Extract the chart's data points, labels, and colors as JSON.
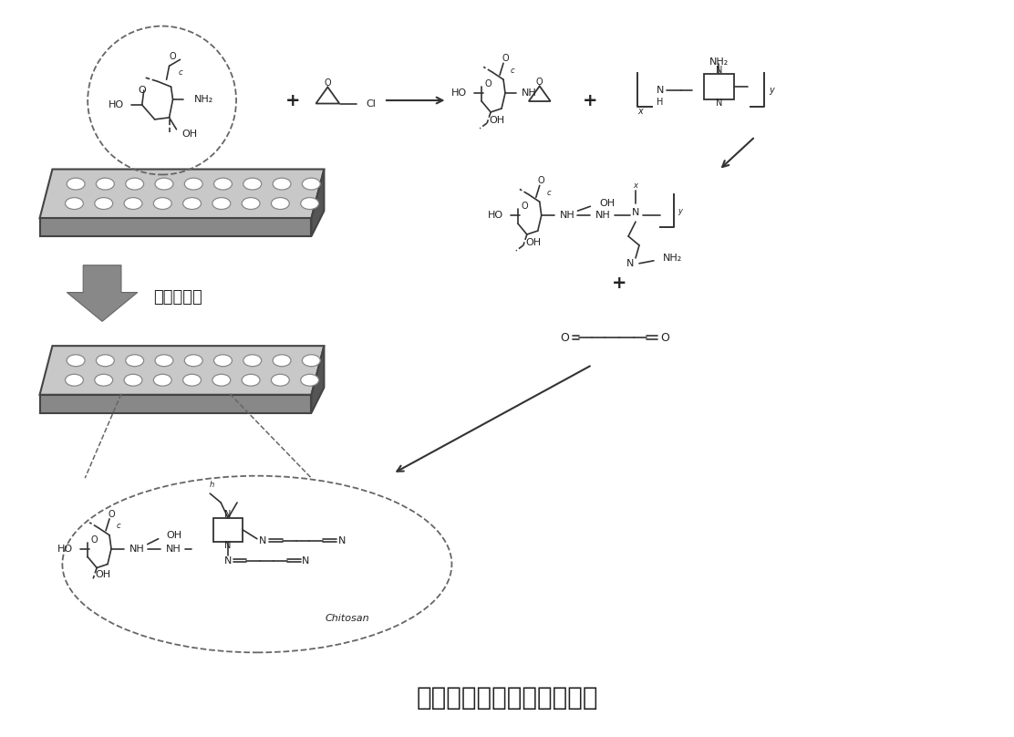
{
  "title": "多孔壳聚糖的表面改性方法",
  "title_fontsize": 20,
  "background_color": "#ffffff",
  "text_color": "#222222",
  "bond_color": "#333333",
  "label_functional": "官能团改性",
  "label_chitosan": "Chitosan",
  "film_top_color": "#c8c8c8",
  "film_right_color": "#555555",
  "film_bottom_color": "#888888",
  "pore_color": "#ffffff",
  "pore_edge_color": "#999999",
  "dashed_color": "#666666",
  "arrow_gray_color": "#888888",
  "arrow_dark_color": "#444444"
}
